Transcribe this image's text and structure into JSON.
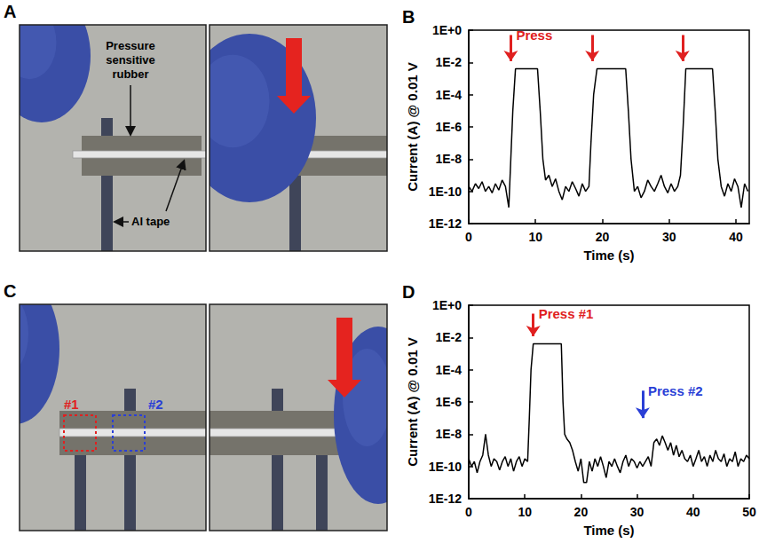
{
  "photos": [
    {
      "panel": "A",
      "rubber_label": "Pressure sensitive rubber",
      "tape_label": "Al tape"
    },
    {
      "panel": "C",
      "regions": [
        {
          "label": "#1",
          "color": "#e02020"
        },
        {
          "label": "#2",
          "color": "#2a3fd6"
        }
      ]
    }
  ],
  "chart_data": [
    {
      "panel": "B",
      "type": "line",
      "x_label": "Time (s)",
      "y_label": "Current (A) @ 0.01 V",
      "log": "y",
      "grid": false,
      "color": "#000000",
      "xlim": [
        0,
        42
      ],
      "xticks": [
        0,
        10,
        20,
        30,
        40
      ],
      "ylim": [
        1e-12,
        1
      ],
      "yticks": [
        {
          "value": 1e-12,
          "label": "1E-12"
        },
        {
          "value": 1e-10,
          "label": "1E-10"
        },
        {
          "value": 1e-08,
          "label": "1E-8"
        },
        {
          "value": 1e-06,
          "label": "1E-6"
        },
        {
          "value": 0.0001,
          "label": "1E-4"
        },
        {
          "value": 0.01,
          "label": "1E-2"
        },
        {
          "value": 1,
          "label": "1E+0"
        }
      ],
      "x": [
        0,
        0.5,
        1,
        1.5,
        2,
        2.5,
        3,
        3.5,
        4,
        4.5,
        5,
        5.5,
        6,
        6.3,
        6.6,
        7,
        8,
        9,
        10,
        10.3,
        10.7,
        11.1,
        11.5,
        12,
        12.5,
        13,
        13.5,
        14,
        14.5,
        15,
        15.5,
        16,
        16.5,
        17,
        17.5,
        18,
        18.3,
        18.7,
        19.2,
        20,
        21,
        22,
        23,
        23.5,
        23.9,
        24.3,
        24.8,
        25.3,
        25.8,
        26.3,
        26.8,
        27.3,
        27.8,
        28.3,
        28.8,
        29.3,
        29.8,
        30.3,
        30.8,
        31.3,
        31.7,
        32.1,
        32.5,
        33,
        34,
        35,
        36,
        36.5,
        36.9,
        37.3,
        37.8,
        38.3,
        38.8,
        39.3,
        39.8,
        40.3,
        40.8,
        41.3,
        41.8
      ],
      "values": [
        2e-10,
        1e-10,
        3e-10,
        1.5e-10,
        4e-10,
        1e-10,
        2e-10,
        8e-11,
        3e-10,
        1.2e-10,
        5e-10,
        2e-10,
        1e-11,
        1e-08,
        1e-05,
        0.004,
        0.004,
        0.004,
        0.004,
        0.004,
        1e-05,
        1e-08,
        5e-10,
        1e-09,
        2e-10,
        6e-10,
        1e-10,
        3e-11,
        2e-10,
        1e-10,
        4e-10,
        1.5e-10,
        5e-11,
        3e-10,
        1e-10,
        2e-10,
        1e-07,
        0.0001,
        0.004,
        0.004,
        0.004,
        0.004,
        0.004,
        0.004,
        1e-05,
        1e-08,
        1e-10,
        2e-10,
        4e-11,
        1e-10,
        5e-10,
        2e-10,
        1e-10,
        3e-10,
        1e-09,
        2e-10,
        8e-11,
        3e-10,
        1e-10,
        2e-10,
        1e-09,
        1e-06,
        0.004,
        0.004,
        0.004,
        0.004,
        0.004,
        0.004,
        1e-05,
        1e-08,
        2e-10,
        5e-11,
        3e-10,
        1e-10,
        6e-10,
        2e-10,
        1e-11,
        3e-10,
        1e-10
      ],
      "annotations": [
        {
          "text": "Press",
          "x": 6.3,
          "y_from": 0.5,
          "y_to": 0.012,
          "color": "#e02020"
        },
        {
          "x": 18.5,
          "y_from": 0.5,
          "y_to": 0.012,
          "color": "#e02020"
        },
        {
          "x": 32,
          "y_from": 0.5,
          "y_to": 0.012,
          "color": "#e02020"
        }
      ]
    },
    {
      "panel": "D",
      "type": "line",
      "x_label": "Time (s)",
      "y_label": "Current (A) @ 0.01 V",
      "log": "y",
      "grid": false,
      "color": "#000000",
      "xlim": [
        0,
        50
      ],
      "xticks": [
        0,
        10,
        20,
        30,
        40,
        50
      ],
      "ylim": [
        1e-12,
        1
      ],
      "yticks": [
        {
          "value": 1e-12,
          "label": "1E-12"
        },
        {
          "value": 1e-10,
          "label": "1E-10"
        },
        {
          "value": 1e-08,
          "label": "1E-8"
        },
        {
          "value": 1e-06,
          "label": "1E-6"
        },
        {
          "value": 0.0001,
          "label": "1E-4"
        },
        {
          "value": 0.01,
          "label": "1E-2"
        },
        {
          "value": 1,
          "label": "1E+0"
        }
      ],
      "x": [
        0,
        0.5,
        1,
        1.5,
        2,
        2.5,
        3,
        3.5,
        4,
        4.5,
        5,
        5.5,
        6,
        6.5,
        7,
        7.5,
        8,
        8.5,
        9,
        9.5,
        10,
        10.5,
        10.8,
        11.1,
        11.5,
        12,
        13,
        14,
        15,
        16,
        16.5,
        16.8,
        17.1,
        17.5,
        18,
        18.5,
        19,
        19.5,
        20,
        20.5,
        21,
        21.5,
        22,
        22.5,
        23,
        23.5,
        24,
        24.5,
        25,
        25.5,
        26,
        26.5,
        27,
        27.5,
        28,
        28.5,
        29,
        29.5,
        30,
        30.5,
        31,
        31.5,
        32,
        32.5,
        33,
        33.5,
        34,
        34.5,
        35,
        35.5,
        36,
        36.5,
        37,
        37.5,
        38,
        38.5,
        39,
        39.5,
        40,
        40.5,
        41,
        41.5,
        42,
        42.5,
        43,
        43.5,
        44,
        44.5,
        45,
        45.5,
        46,
        46.5,
        47,
        47.5,
        48,
        48.5,
        49,
        49.5,
        50
      ],
      "values": [
        3e-10,
        1e-10,
        2e-10,
        4e-11,
        2e-10,
        5e-10,
        1e-08,
        5e-10,
        1e-10,
        3e-10,
        2e-10,
        6e-11,
        2e-10,
        4e-10,
        1e-10,
        3e-10,
        5e-11,
        2e-10,
        4e-10,
        1e-10,
        3e-10,
        2e-10,
        1e-07,
        0.0001,
        0.004,
        0.004,
        0.004,
        0.004,
        0.004,
        0.004,
        0.004,
        1e-06,
        1e-08,
        5e-09,
        3e-09,
        1e-09,
        2e-10,
        5e-11,
        3e-10,
        1e-11,
        1e-11,
        2e-10,
        5e-11,
        3e-10,
        1e-10,
        4e-10,
        1e-10,
        2e-11,
        2e-10,
        1e-10,
        3e-10,
        1e-10,
        4e-11,
        2e-10,
        5e-10,
        1e-10,
        3e-10,
        2e-10,
        8e-11,
        2e-10,
        1e-10,
        2e-10,
        4e-10,
        1e-10,
        3e-09,
        5e-09,
        2e-09,
        8e-09,
        3e-09,
        1e-09,
        3e-09,
        5e-10,
        2e-09,
        4e-10,
        1e-09,
        3e-10,
        2e-10,
        5e-10,
        1e-10,
        3e-10,
        1e-09,
        2e-10,
        4e-10,
        1e-10,
        5e-10,
        2e-10,
        1e-09,
        3e-10,
        2e-10,
        6e-10,
        1e-10,
        3e-10,
        2e-10,
        8e-10,
        1e-10,
        3e-10,
        2e-10,
        5e-10,
        3e-10
      ],
      "annotations": [
        {
          "text": "Press #1",
          "x": 11.5,
          "y_from": 0.3,
          "y_to": 0.012,
          "color": "#e02020"
        },
        {
          "text": "Press #2",
          "x": 31,
          "y_from": 5e-06,
          "y_to": 1e-07,
          "color": "#2a3fd6"
        }
      ]
    }
  ]
}
